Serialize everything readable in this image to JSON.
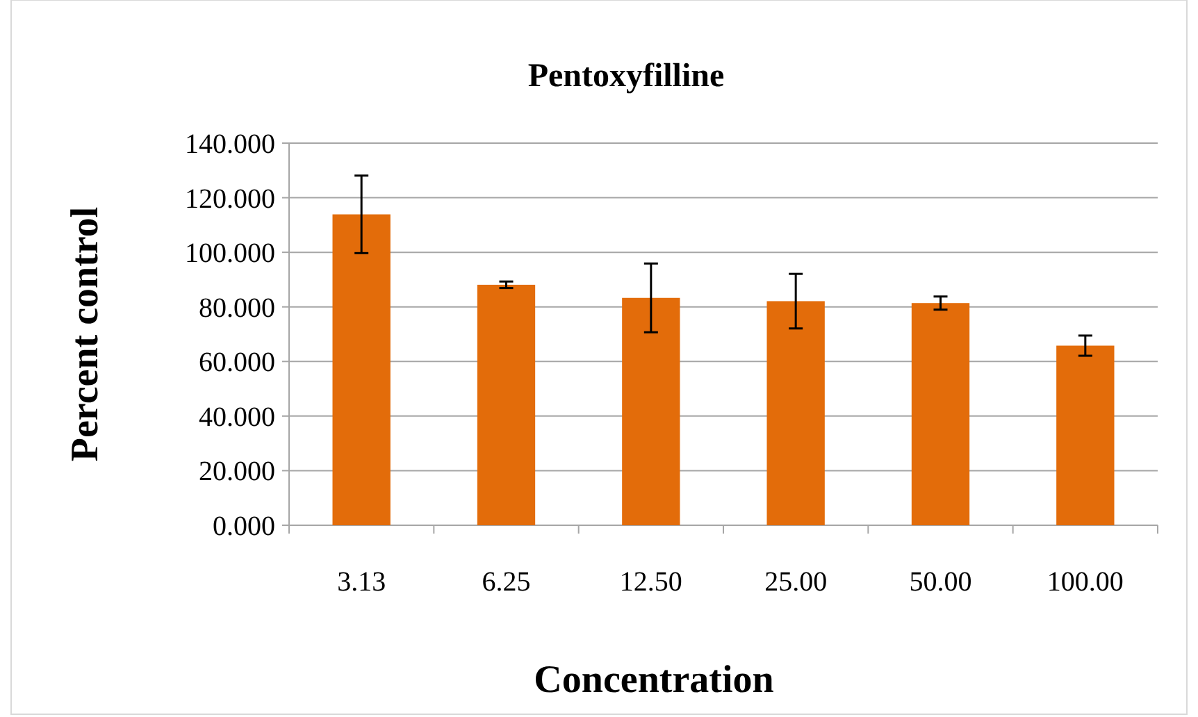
{
  "chart_data": {
    "type": "bar",
    "title": "Pentoxyfilline",
    "xlabel": "Concentration",
    "ylabel": "Percent control",
    "categories": [
      "3.13",
      "6.25",
      "12.50",
      "25.00",
      "50.00",
      "100.00"
    ],
    "values": [
      113.9,
      88.1,
      83.3,
      82.1,
      81.4,
      65.8
    ],
    "errors": [
      14.2,
      1.2,
      12.6,
      10.0,
      2.4,
      3.7
    ],
    "color": "#e36c0a",
    "ylim": [
      0,
      140
    ],
    "yticks": [
      {
        "value": 0,
        "label": "0.000"
      },
      {
        "value": 20,
        "label": "20.000"
      },
      {
        "value": 40,
        "label": "40.000"
      },
      {
        "value": 60,
        "label": "60.000"
      },
      {
        "value": 80,
        "label": "80.000"
      },
      {
        "value": 100,
        "label": "100.000"
      },
      {
        "value": 120,
        "label": "120.000"
      },
      {
        "value": 140,
        "label": "140.000"
      }
    ],
    "grid": "y"
  }
}
